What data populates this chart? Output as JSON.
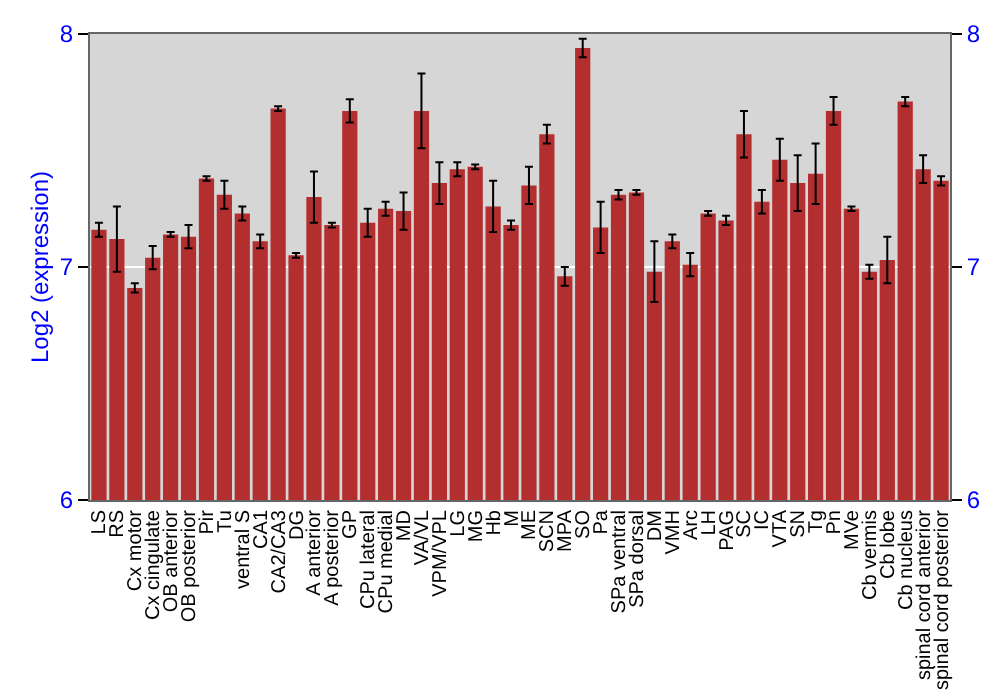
{
  "chart_data": {
    "type": "bar",
    "ylabel": "Log2 (expression)",
    "categories": [
      "LS",
      "RS",
      "Cx motor",
      "Cx cingulate",
      "OB anterior",
      "OB posterior",
      "Pir",
      "Tu",
      "ventral S",
      "CA1",
      "CA2/CA3",
      "DG",
      "A anterior",
      "A posterior",
      "GP",
      "CPu lateral",
      "CPu medial",
      "MD",
      "VA/VL",
      "VPM/VPL",
      "LG",
      "MG",
      "Hb",
      "M",
      "ME",
      "SCN",
      "MPA",
      "SO",
      "Pa",
      "SPa ventral",
      "SPa dorsal",
      "DM",
      "VMH",
      "Arc",
      "LH",
      "PAG",
      "SC",
      "IC",
      "VTA",
      "SN",
      "Tg",
      "Pn",
      "MVe",
      "Cb vermis",
      "Cb lobe",
      "Cb nucleus",
      "spinal cord anterior",
      "spinal cord posterior"
    ],
    "values": [
      7.16,
      7.12,
      6.91,
      7.04,
      7.14,
      7.13,
      7.38,
      7.31,
      7.23,
      7.11,
      7.68,
      7.05,
      7.3,
      7.18,
      7.67,
      7.19,
      7.25,
      7.24,
      7.67,
      7.36,
      7.42,
      7.43,
      7.26,
      7.18,
      7.35,
      7.57,
      6.96,
      7.94,
      7.17,
      7.31,
      7.32,
      6.98,
      7.11,
      7.01,
      7.23,
      7.2,
      7.57,
      7.28,
      7.46,
      7.36,
      7.4,
      7.67,
      7.25,
      6.98,
      7.03,
      7.71,
      7.42,
      7.37
    ],
    "errors": [
      0.03,
      0.14,
      0.02,
      0.05,
      0.01,
      0.05,
      0.01,
      0.06,
      0.03,
      0.03,
      0.01,
      0.01,
      0.11,
      0.01,
      0.05,
      0.06,
      0.03,
      0.08,
      0.16,
      0.09,
      0.03,
      0.01,
      0.11,
      0.02,
      0.08,
      0.04,
      0.04,
      0.04,
      0.11,
      0.02,
      0.01,
      0.13,
      0.03,
      0.05,
      0.01,
      0.02,
      0.1,
      0.05,
      0.09,
      0.12,
      0.13,
      0.06,
      0.01,
      0.03,
      0.1,
      0.02,
      0.06,
      0.02
    ],
    "color": "#b32e2e",
    "ylim": [
      6,
      8
    ],
    "yticks": [
      6,
      7,
      8
    ],
    "y2lim": [
      6,
      8
    ],
    "y2ticks": [
      6,
      7,
      8
    ],
    "grid": "y"
  }
}
